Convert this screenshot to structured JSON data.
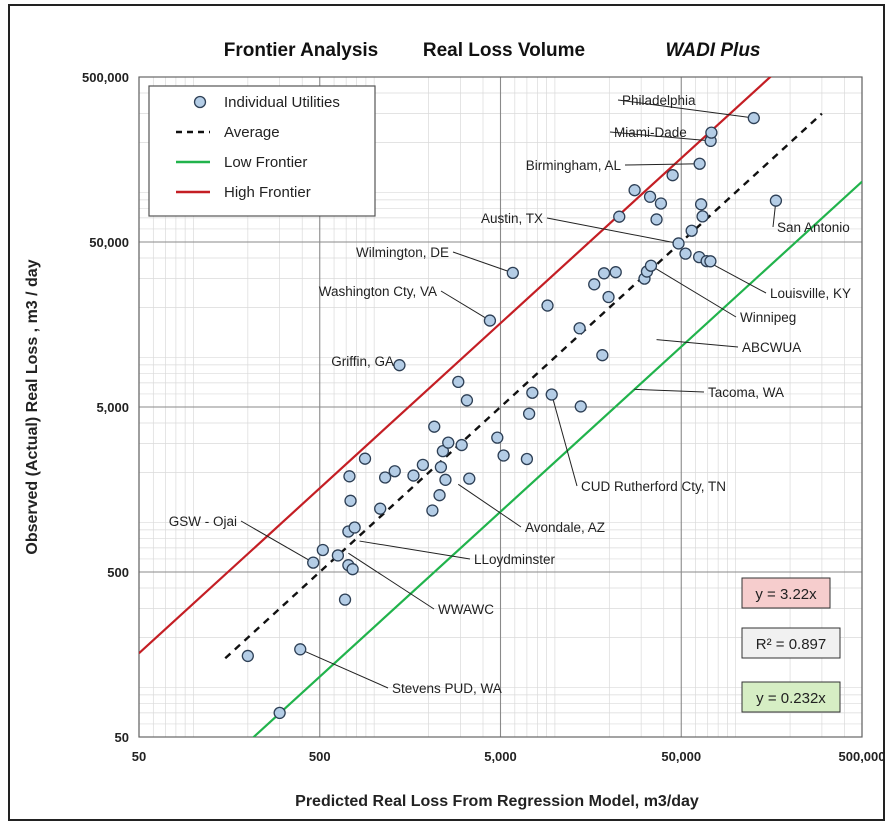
{
  "chart_data": {
    "type": "scatter",
    "titles": [
      "Frontier Analysis",
      "Real Loss Volume",
      "WADI Plus"
    ],
    "xlabel": "Predicted Real Loss From Regression Model, m3/day",
    "ylabel": "Observed (Actual) Real Loss , m3 / day",
    "x_scale": "log",
    "y_scale": "log",
    "xlim": [
      50,
      500000
    ],
    "ylim": [
      50,
      500000
    ],
    "x_ticks": [
      50,
      500,
      5000,
      50000,
      500000
    ],
    "x_tick_labels": [
      "50",
      "500",
      "5,000",
      "50,000",
      "500,000"
    ],
    "y_ticks": [
      50,
      500,
      5000,
      50000,
      500000
    ],
    "y_tick_labels": [
      "50",
      "500",
      "5,000",
      "50,000",
      "500,000"
    ],
    "grid": true,
    "legend": {
      "placement": "top-left",
      "entries": [
        {
          "label": "Individual Utilities",
          "style": "marker",
          "color": "#b4cde6"
        },
        {
          "label": "Average",
          "style": "dashed",
          "color": "#111111"
        },
        {
          "label": "Low Frontier",
          "style": "line",
          "color": "#21b34c"
        },
        {
          "label": "High Frontier",
          "style": "line",
          "color": "#c41e24"
        }
      ]
    },
    "lines": [
      {
        "name": "Average",
        "slope": 1.0,
        "x_range": [
          150,
          300000
        ],
        "color": "#111111",
        "dash": true
      },
      {
        "name": "Low Frontier",
        "slope": 0.232,
        "x_range": [
          50,
          500000
        ],
        "color": "#21b34c",
        "dash": false
      },
      {
        "name": "High Frontier",
        "slope": 3.22,
        "x_range": [
          50,
          500000
        ],
        "color": "#c41e24",
        "dash": false
      }
    ],
    "points": [
      [
        200,
        155
      ],
      [
        300,
        70
      ],
      [
        390,
        170
      ],
      [
        460,
        570
      ],
      [
        520,
        680
      ],
      [
        630,
        630
      ],
      [
        690,
        340
      ],
      [
        720,
        550
      ],
      [
        720,
        880
      ],
      [
        740,
        1350
      ],
      [
        760,
        520
      ],
      [
        730,
        1900
      ],
      [
        780,
        930
      ],
      [
        890,
        2430
      ],
      [
        1080,
        1210
      ],
      [
        1150,
        1870
      ],
      [
        1300,
        2040
      ],
      [
        1380,
        8960
      ],
      [
        1650,
        1920
      ],
      [
        1860,
        2230
      ],
      [
        2100,
        1180
      ],
      [
        2150,
        3800
      ],
      [
        2300,
        1460
      ],
      [
        2340,
        2160
      ],
      [
        2400,
        2700
      ],
      [
        2480,
        1810
      ],
      [
        2570,
        3040
      ],
      [
        2920,
        7100
      ],
      [
        3050,
        2940
      ],
      [
        3260,
        5490
      ],
      [
        3360,
        1840
      ],
      [
        4370,
        16700
      ],
      [
        4800,
        3260
      ],
      [
        5200,
        2540
      ],
      [
        5850,
        32500
      ],
      [
        7000,
        2420
      ],
      [
        7200,
        4550
      ],
      [
        7500,
        6100
      ],
      [
        9100,
        20600
      ],
      [
        9600,
        5950
      ],
      [
        13700,
        15000
      ],
      [
        13900,
        5040
      ],
      [
        16500,
        27700
      ],
      [
        18300,
        10300
      ],
      [
        18700,
        32300
      ],
      [
        19800,
        23200
      ],
      [
        21700,
        32800
      ],
      [
        22700,
        71200
      ],
      [
        27600,
        103000
      ],
      [
        31300,
        30000
      ],
      [
        32300,
        33100
      ],
      [
        33600,
        94000
      ],
      [
        34000,
        35900
      ],
      [
        36500,
        68500
      ],
      [
        38600,
        85600
      ],
      [
        44800,
        127000
      ],
      [
        48300,
        49000
      ],
      [
        52800,
        42500
      ],
      [
        57100,
        58500
      ],
      [
        62800,
        40500
      ],
      [
        63200,
        149000
      ],
      [
        64400,
        84600
      ],
      [
        65600,
        71500
      ],
      [
        69100,
        38300
      ],
      [
        72500,
        38200
      ],
      [
        72700,
        205000
      ],
      [
        73400,
        230000
      ],
      [
        126000,
        282000
      ],
      [
        167000,
        89000
      ]
    ],
    "annotations": [
      {
        "label": "Philadelphia",
        "point": [
          126000,
          282000
        ]
      },
      {
        "label": "Miami-Dade",
        "point": [
          72700,
          205000
        ]
      },
      {
        "label": "Birmingham, AL",
        "point": [
          63200,
          149000
        ]
      },
      {
        "label": "San Antonio",
        "point": [
          167000,
          89000
        ]
      },
      {
        "label": "Austin, TX",
        "point": [
          48300,
          49000
        ]
      },
      {
        "label": "Wilmington, DE",
        "point": [
          5850,
          32500
        ]
      },
      {
        "label": "Washington Cty, VA",
        "point": [
          4370,
          16700
        ]
      },
      {
        "label": "Louisville, KY",
        "point": [
          69100,
          38300
        ]
      },
      {
        "label": "Winnipeg",
        "point": [
          34000,
          35900
        ]
      },
      {
        "label": "ABCWUA",
        "point": [
          36500,
          12800
        ]
      },
      {
        "label": "Griffin, GA",
        "point": [
          1380,
          8960
        ]
      },
      {
        "label": "Tacoma, WA",
        "point": [
          27500,
          6400
        ]
      },
      {
        "label": "CUD Rutherford Cty, TN",
        "point": [
          9600,
          5950
        ]
      },
      {
        "label": "Avondale, AZ",
        "point": [
          2920,
          1700
        ]
      },
      {
        "label": "GSW - Ojai",
        "point": [
          460,
          570
        ]
      },
      {
        "label": "LLoydminster",
        "point": [
          830,
          770
        ]
      },
      {
        "label": "WWAWC",
        "point": [
          720,
          650
        ]
      },
      {
        "label": "Stevens PUD, WA",
        "point": [
          390,
          170
        ]
      }
    ],
    "equations": [
      {
        "text": "y = 3.22x",
        "bg": "#f6cdcd"
      },
      {
        "text": "R² = 0.897",
        "bg": "#f1f1f1"
      },
      {
        "text": "y = 0.232x",
        "bg": "#d6eec4"
      }
    ]
  }
}
